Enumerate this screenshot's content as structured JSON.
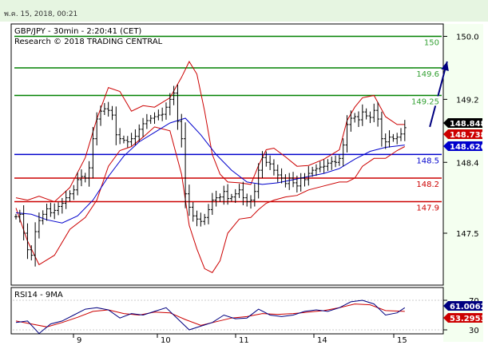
{
  "header": {
    "timestamp": "พ.ค. 15, 2018, 00:21"
  },
  "chart_data": [
    {
      "type": "line",
      "title": "GBP/JPY - 30min - 2:20:41 (CET)",
      "subtitle": "Research © 2018 TRADING CENTRAL",
      "x_labels": [
        "9",
        "10",
        "11",
        "14",
        "15"
      ],
      "y_ticks": [
        "150.0",
        "149.2",
        "148.4",
        "147.5"
      ],
      "ylim": [
        147.0,
        150.08
      ],
      "levels": [
        {
          "label": "150",
          "value": 150.0,
          "color": "#008000",
          "text_color": "#33a033"
        },
        {
          "label": "149.6",
          "value": 149.6,
          "color": "#008000",
          "text_color": "#33a033"
        },
        {
          "label": "149.25",
          "value": 149.25,
          "color": "#008000",
          "text_color": "#33a033"
        },
        {
          "label": "148.5",
          "value": 148.5,
          "color": "#0000cc",
          "text_color": "#0000cc"
        },
        {
          "label": "148.2",
          "value": 148.2,
          "color": "#cc0000",
          "text_color": "#cc0000"
        },
        {
          "label": "147.9",
          "value": 147.9,
          "color": "#cc0000",
          "text_color": "#cc0000"
        }
      ],
      "price_tags": [
        {
          "label": "148.848",
          "value": 148.848,
          "color": "#000000"
        },
        {
          "label": "148.738",
          "value": 148.738,
          "color": "#cc0000"
        },
        {
          "label": "148.626",
          "value": 148.626,
          "color": "#0000cc"
        }
      ],
      "arrow": {
        "from": [
          107.5,
          148.85
        ],
        "to": [
          112.0,
          149.68
        ],
        "color": "#000080"
      },
      "close_series": [
        [
          0,
          147.71
        ],
        [
          1,
          147.74
        ],
        [
          2,
          147.5
        ],
        [
          3,
          147.29
        ],
        [
          4,
          147.22
        ],
        [
          5,
          147.52
        ],
        [
          6,
          147.66
        ],
        [
          7,
          147.74
        ],
        [
          8,
          147.81
        ],
        [
          9,
          147.76
        ],
        [
          10,
          147.79
        ],
        [
          11,
          147.84
        ],
        [
          12,
          147.88
        ],
        [
          13,
          147.95
        ],
        [
          14,
          148.0
        ],
        [
          15,
          148.05
        ],
        [
          16,
          148.18
        ],
        [
          17,
          148.22
        ],
        [
          18,
          148.2
        ],
        [
          19,
          148.33
        ],
        [
          20,
          148.7
        ],
        [
          21,
          148.95
        ],
        [
          22,
          149.05
        ],
        [
          23,
          149.08
        ],
        [
          24,
          149.06
        ],
        [
          25,
          149.0
        ],
        [
          26,
          148.75
        ],
        [
          27,
          148.7
        ],
        [
          28,
          148.68
        ],
        [
          29,
          148.66
        ],
        [
          30,
          148.7
        ],
        [
          31,
          148.73
        ],
        [
          32,
          148.82
        ],
        [
          33,
          148.89
        ],
        [
          34,
          148.93
        ],
        [
          35,
          148.96
        ],
        [
          36,
          148.98
        ],
        [
          37,
          149.0
        ],
        [
          38,
          149.01
        ],
        [
          39,
          149.1
        ],
        [
          40,
          149.2
        ],
        [
          41,
          149.28
        ],
        [
          42,
          148.92
        ],
        [
          43,
          148.7
        ],
        [
          44,
          148.0
        ],
        [
          45,
          147.83
        ],
        [
          46,
          147.72
        ],
        [
          47,
          147.68
        ],
        [
          48,
          147.65
        ],
        [
          49,
          147.7
        ],
        [
          50,
          147.8
        ],
        [
          51,
          147.92
        ],
        [
          52,
          147.95
        ],
        [
          53,
          147.96
        ],
        [
          54,
          148.03
        ],
        [
          55,
          147.94
        ],
        [
          56,
          147.96
        ],
        [
          57,
          148.0
        ],
        [
          58,
          148.05
        ],
        [
          59,
          147.95
        ],
        [
          60,
          147.9
        ],
        [
          61,
          147.92
        ],
        [
          62,
          148.03
        ],
        [
          63,
          148.3
        ],
        [
          64,
          148.46
        ],
        [
          65,
          148.4
        ],
        [
          66,
          148.38
        ],
        [
          67,
          148.3
        ],
        [
          68,
          148.24
        ],
        [
          69,
          148.2
        ],
        [
          70,
          148.13
        ],
        [
          71,
          148.2
        ],
        [
          72,
          148.14
        ],
        [
          73,
          148.1
        ],
        [
          74,
          148.2
        ],
        [
          75,
          148.18
        ],
        [
          76,
          148.26
        ],
        [
          77,
          148.3
        ],
        [
          78,
          148.32
        ],
        [
          79,
          148.34
        ],
        [
          80,
          148.35
        ],
        [
          81,
          148.39
        ],
        [
          82,
          148.41
        ],
        [
          83,
          148.4
        ],
        [
          84,
          148.45
        ],
        [
          85,
          148.62
        ],
        [
          86,
          148.88
        ],
        [
          87,
          148.96
        ],
        [
          88,
          148.98
        ],
        [
          89,
          148.94
        ],
        [
          90,
          149.04
        ],
        [
          91,
          148.99
        ],
        [
          92,
          148.97
        ],
        [
          93,
          149.06
        ],
        [
          94,
          148.95
        ],
        [
          95,
          148.7
        ],
        [
          96,
          148.66
        ],
        [
          97,
          148.72
        ],
        [
          98,
          148.7
        ],
        [
          99,
          148.72
        ],
        [
          100,
          148.76
        ],
        [
          101,
          148.84
        ]
      ],
      "ma_series": [
        [
          0,
          147.76
        ],
        [
          4,
          147.74
        ],
        [
          8,
          147.67
        ],
        [
          12,
          147.63
        ],
        [
          16,
          147.72
        ],
        [
          20,
          147.92
        ],
        [
          24,
          148.22
        ],
        [
          28,
          148.48
        ],
        [
          32,
          148.66
        ],
        [
          36,
          148.78
        ],
        [
          40,
          148.9
        ],
        [
          44,
          148.96
        ],
        [
          48,
          148.75
        ],
        [
          52,
          148.5
        ],
        [
          56,
          148.3
        ],
        [
          60,
          148.15
        ],
        [
          64,
          148.12
        ],
        [
          68,
          148.14
        ],
        [
          72,
          148.18
        ],
        [
          76,
          148.22
        ],
        [
          80,
          148.26
        ],
        [
          84,
          148.32
        ],
        [
          88,
          148.44
        ],
        [
          92,
          148.54
        ],
        [
          96,
          148.59
        ],
        [
          101,
          148.62
        ]
      ],
      "bb_upper": [
        [
          0,
          147.95
        ],
        [
          3,
          147.92
        ],
        [
          6,
          147.97
        ],
        [
          10,
          147.9
        ],
        [
          14,
          148.08
        ],
        [
          18,
          148.46
        ],
        [
          21,
          148.95
        ],
        [
          24,
          149.35
        ],
        [
          27,
          149.3
        ],
        [
          30,
          149.05
        ],
        [
          33,
          149.12
        ],
        [
          36,
          149.1
        ],
        [
          40,
          149.22
        ],
        [
          43,
          149.48
        ],
        [
          45,
          149.68
        ],
        [
          47,
          149.52
        ],
        [
          49,
          149.05
        ],
        [
          51,
          148.5
        ],
        [
          53,
          148.25
        ],
        [
          55,
          148.15
        ],
        [
          58,
          148.14
        ],
        [
          61,
          148.12
        ],
        [
          63,
          148.36
        ],
        [
          65,
          148.56
        ],
        [
          67,
          148.58
        ],
        [
          70,
          148.47
        ],
        [
          73,
          148.35
        ],
        [
          76,
          148.36
        ],
        [
          80,
          148.44
        ],
        [
          84,
          148.56
        ],
        [
          86,
          148.93
        ],
        [
          88,
          149.1
        ],
        [
          90,
          149.22
        ],
        [
          93,
          149.25
        ],
        [
          96,
          148.98
        ],
        [
          99,
          148.88
        ],
        [
          101,
          148.88
        ]
      ],
      "bb_lower": [
        [
          0,
          147.82
        ],
        [
          3,
          147.4
        ],
        [
          6,
          147.1
        ],
        [
          10,
          147.22
        ],
        [
          14,
          147.55
        ],
        [
          18,
          147.7
        ],
        [
          21,
          147.92
        ],
        [
          24,
          148.35
        ],
        [
          27,
          148.55
        ],
        [
          30,
          148.6
        ],
        [
          33,
          148.72
        ],
        [
          36,
          148.85
        ],
        [
          40,
          148.8
        ],
        [
          43,
          148.25
        ],
        [
          45,
          147.6
        ],
        [
          47,
          147.3
        ],
        [
          49,
          147.05
        ],
        [
          51,
          147.0
        ],
        [
          53,
          147.15
        ],
        [
          55,
          147.5
        ],
        [
          58,
          147.68
        ],
        [
          61,
          147.7
        ],
        [
          63,
          147.8
        ],
        [
          65,
          147.88
        ],
        [
          67,
          147.92
        ],
        [
          70,
          147.96
        ],
        [
          73,
          147.98
        ],
        [
          76,
          148.05
        ],
        [
          80,
          148.1
        ],
        [
          84,
          148.15
        ],
        [
          86,
          148.15
        ],
        [
          88,
          148.2
        ],
        [
          90,
          148.35
        ],
        [
          93,
          148.45
        ],
        [
          96,
          148.45
        ],
        [
          99,
          148.55
        ],
        [
          101,
          148.6
        ]
      ]
    },
    {
      "type": "line",
      "title": "RSI14 - 9MA",
      "y_ticks": [
        "70",
        "30"
      ],
      "ylim": [
        18,
        80
      ],
      "value_tags": [
        {
          "label": "61.0062",
          "value": 61.0,
          "color": "#000080"
        },
        {
          "label": "53.2953",
          "color": "#cc0000"
        }
      ],
      "rsi": [
        [
          0,
          40
        ],
        [
          3,
          42
        ],
        [
          6,
          25
        ],
        [
          9,
          38
        ],
        [
          12,
          42
        ],
        [
          15,
          50
        ],
        [
          18,
          58
        ],
        [
          21,
          60
        ],
        [
          24,
          57
        ],
        [
          27,
          46
        ],
        [
          30,
          52
        ],
        [
          33,
          50
        ],
        [
          36,
          55
        ],
        [
          39,
          60
        ],
        [
          42,
          45
        ],
        [
          45,
          30
        ],
        [
          48,
          35
        ],
        [
          51,
          40
        ],
        [
          54,
          50
        ],
        [
          57,
          45
        ],
        [
          60,
          46
        ],
        [
          63,
          58
        ],
        [
          66,
          50
        ],
        [
          69,
          48
        ],
        [
          72,
          50
        ],
        [
          75,
          55
        ],
        [
          78,
          57
        ],
        [
          81,
          55
        ],
        [
          84,
          60
        ],
        [
          87,
          68
        ],
        [
          90,
          70
        ],
        [
          93,
          65
        ],
        [
          96,
          50
        ],
        [
          99,
          53
        ],
        [
          101,
          60
        ]
      ],
      "rsi_ma": [
        [
          0,
          42
        ],
        [
          4,
          38
        ],
        [
          8,
          34
        ],
        [
          12,
          40
        ],
        [
          16,
          47
        ],
        [
          20,
          55
        ],
        [
          24,
          57
        ],
        [
          28,
          52
        ],
        [
          32,
          50
        ],
        [
          36,
          54
        ],
        [
          40,
          53
        ],
        [
          44,
          44
        ],
        [
          48,
          36
        ],
        [
          52,
          41
        ],
        [
          56,
          46
        ],
        [
          60,
          48
        ],
        [
          64,
          52
        ],
        [
          68,
          51
        ],
        [
          72,
          52
        ],
        [
          76,
          54
        ],
        [
          80,
          56
        ],
        [
          84,
          60
        ],
        [
          88,
          65
        ],
        [
          92,
          64
        ],
        [
          96,
          56
        ],
        [
          101,
          55
        ]
      ]
    }
  ],
  "colors": {
    "price": "#000000",
    "ma": "#0000cc",
    "bb": "#cc0000",
    "rsi": "#000080",
    "rsi_ma": "#cc0000",
    "header_bg": "#e6f5e1",
    "axis_bg": "#f4fff0"
  }
}
